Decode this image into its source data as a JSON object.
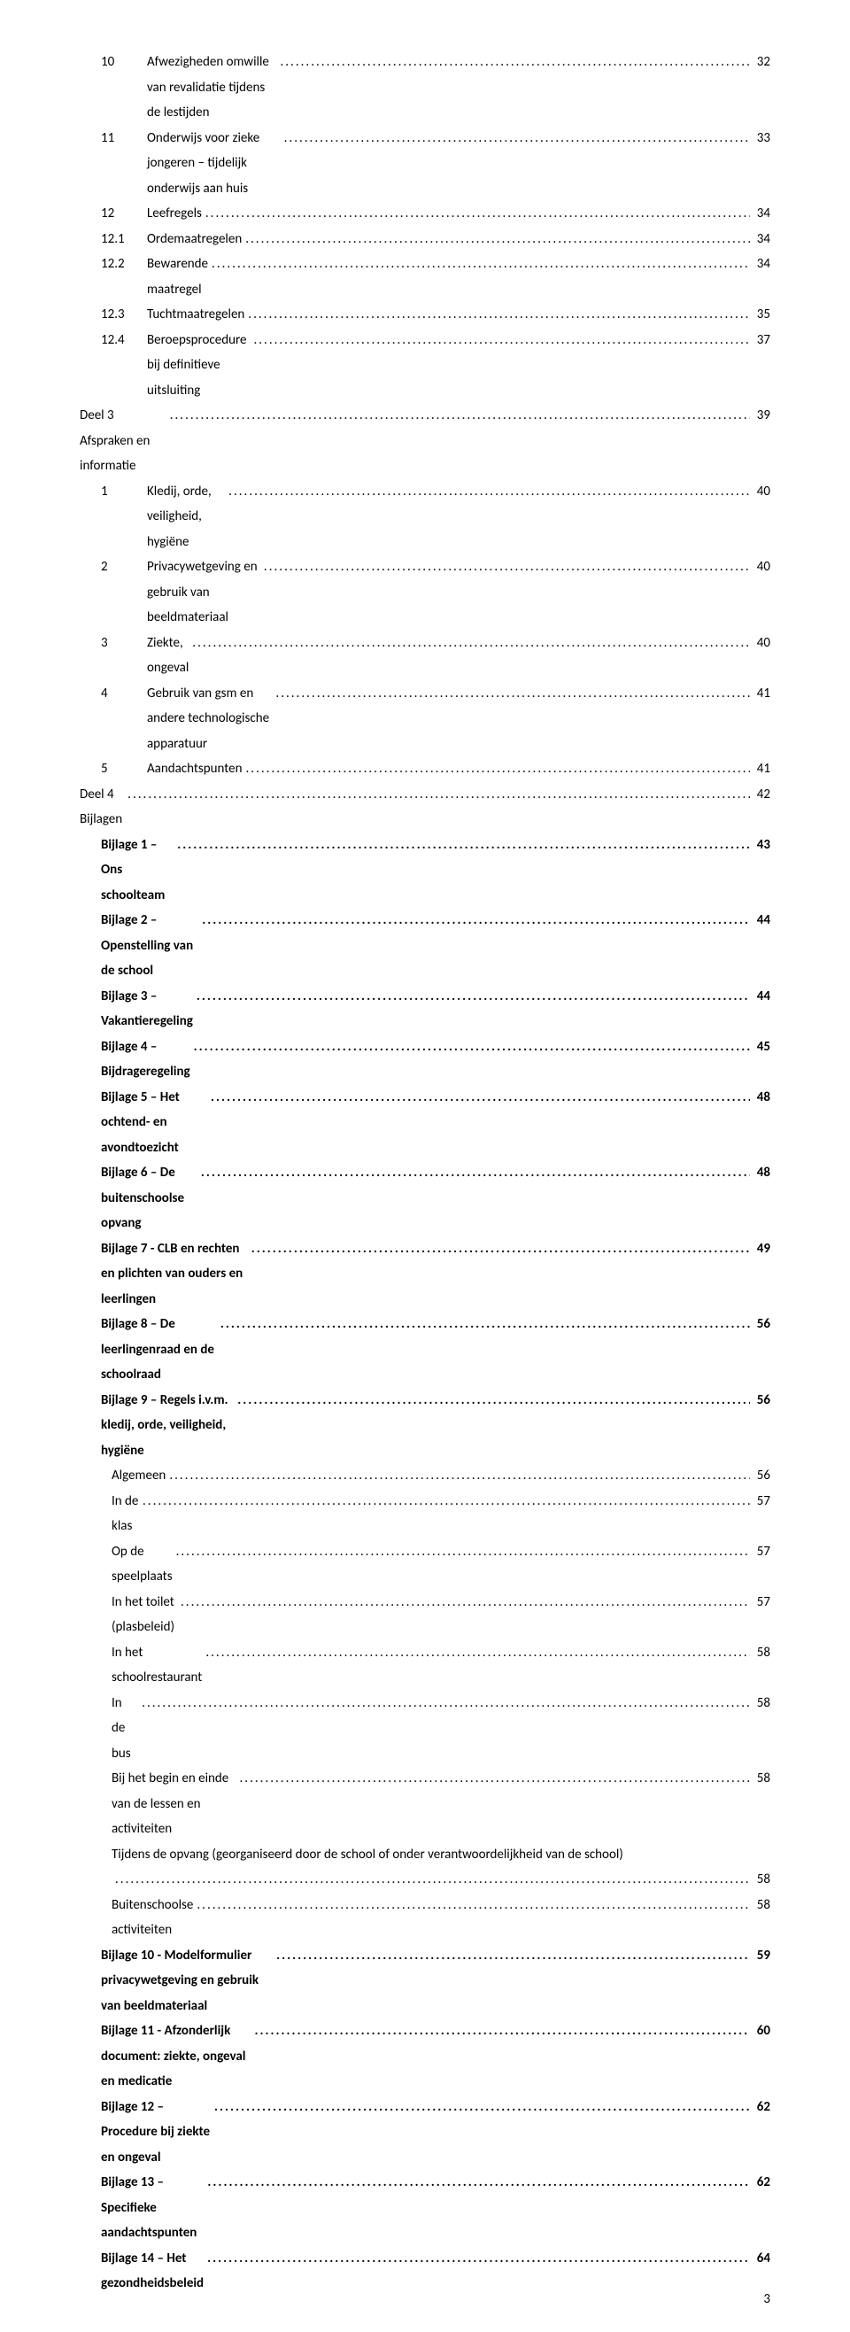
{
  "page_number": "3",
  "entries": [
    {
      "num": "10",
      "title": "Afwezigheden omwille van revalidatie tijdens de lestijden",
      "page": "32",
      "indent": "indent-1",
      "bold": false,
      "numClass": "toc-num-wide"
    },
    {
      "num": "11",
      "title": "Onderwijs voor zieke jongeren – tijdelijk onderwijs aan huis",
      "page": "33",
      "indent": "indent-1",
      "bold": false,
      "numClass": "toc-num-wide"
    },
    {
      "num": "12",
      "title": "Leefregels",
      "page": "34",
      "indent": "indent-1",
      "bold": false,
      "numClass": "toc-num-wide"
    },
    {
      "num": "12.1",
      "title": "Ordemaatregelen",
      "page": "34",
      "indent": "indent-2",
      "bold": false,
      "numClass": "toc-num-wide"
    },
    {
      "num": "12.2",
      "title": "Bewarende maatregel",
      "page": "34",
      "indent": "indent-2",
      "bold": false,
      "numClass": "toc-num-wide"
    },
    {
      "num": "12.3",
      "title": "Tuchtmaatregelen",
      "page": "35",
      "indent": "indent-2",
      "bold": false,
      "numClass": "toc-num-wide"
    },
    {
      "num": "12.4",
      "title": "Beroepsprocedure bij definitieve uitsluiting",
      "page": "37",
      "indent": "indent-2",
      "bold": false,
      "numClass": "toc-num-wide"
    },
    {
      "num": "",
      "title": "Deel 3 Afspraken en informatie",
      "page": "39",
      "indent": "",
      "bold": false,
      "numClass": ""
    },
    {
      "num": "1",
      "title": "Kledij, orde, veiligheid, hygiëne",
      "page": "40",
      "indent": "indent-1",
      "bold": false,
      "numClass": "toc-num-wide"
    },
    {
      "num": "2",
      "title": "Privacywetgeving en gebruik van beeldmateriaal",
      "page": "40",
      "indent": "indent-1",
      "bold": false,
      "numClass": "toc-num-wide"
    },
    {
      "num": "3",
      "title": "Ziekte, ongeval",
      "page": "40",
      "indent": "indent-1",
      "bold": false,
      "numClass": "toc-num-wide"
    },
    {
      "num": "4",
      "title": "Gebruik van gsm en andere technologische apparatuur",
      "page": "41",
      "indent": "indent-1",
      "bold": false,
      "numClass": "toc-num-wide"
    },
    {
      "num": "5",
      "title": "Aandachtspunten",
      "page": "41",
      "indent": "indent-1",
      "bold": false,
      "numClass": "toc-num-wide"
    },
    {
      "num": "",
      "title": "Deel 4 Bijlagen",
      "page": "42",
      "indent": "",
      "bold": false,
      "numClass": ""
    },
    {
      "num": "",
      "title": "Bijlage 1 – Ons schoolteam",
      "page": "43",
      "indent": "indent-1",
      "bold": true,
      "numClass": ""
    },
    {
      "num": "",
      "title": "Bijlage 2 – Openstelling van de school",
      "page": "44",
      "indent": "indent-1",
      "bold": true,
      "numClass": ""
    },
    {
      "num": "",
      "title": "Bijlage 3 – Vakantieregeling",
      "page": "44",
      "indent": "indent-1",
      "bold": true,
      "numClass": ""
    },
    {
      "num": "",
      "title": "Bijlage 4 – Bijdrageregeling",
      "page": "45",
      "indent": "indent-1",
      "bold": true,
      "numClass": ""
    },
    {
      "num": "",
      "title": "Bijlage 5 – Het ochtend- en avondtoezicht",
      "page": "48",
      "indent": "indent-1",
      "bold": true,
      "numClass": ""
    },
    {
      "num": "",
      "title": "Bijlage 6 – De buitenschoolse opvang",
      "page": "48",
      "indent": "indent-1",
      "bold": true,
      "numClass": ""
    },
    {
      "num": "",
      "title": "Bijlage 7 - CLB en rechten en plichten van ouders en leerlingen",
      "page": "49",
      "indent": "indent-1",
      "bold": true,
      "numClass": ""
    },
    {
      "num": "",
      "title": "Bijlage 8 – De leerlingenraad en de schoolraad",
      "page": "56",
      "indent": "indent-1",
      "bold": true,
      "numClass": ""
    },
    {
      "num": "",
      "title": "Bijlage 9 – Regels i.v.m. kledij, orde, veiligheid, hygiëne",
      "page": "56",
      "indent": "indent-1",
      "bold": true,
      "numClass": ""
    },
    {
      "num": "",
      "title": "Algemeen",
      "page": "56",
      "indent": "indent-sub",
      "bold": false,
      "numClass": ""
    },
    {
      "num": "",
      "title": "In de klas",
      "page": "57",
      "indent": "indent-sub",
      "bold": false,
      "numClass": ""
    },
    {
      "num": "",
      "title": "Op de speelplaats",
      "page": "57",
      "indent": "indent-sub",
      "bold": false,
      "numClass": ""
    },
    {
      "num": "",
      "title": "In het toilet (plasbeleid)",
      "page": "57",
      "indent": "indent-sub",
      "bold": false,
      "numClass": ""
    },
    {
      "num": "",
      "title": "In het schoolrestaurant",
      "page": "58",
      "indent": "indent-sub",
      "bold": false,
      "numClass": ""
    },
    {
      "num": "",
      "title": "In de bus",
      "page": "58",
      "indent": "indent-sub",
      "bold": false,
      "numClass": ""
    },
    {
      "num": "",
      "title": "Bij het begin en einde van de lessen en activiteiten",
      "page": "58",
      "indent": "indent-sub",
      "bold": false,
      "numClass": ""
    },
    {
      "num": "",
      "title": "Tijdens de opvang (georganiseerd door de school of onder verantwoordelijkheid van de school)",
      "page": "58",
      "indent": "indent-sub",
      "bold": false,
      "numClass": "",
      "wrap": true
    },
    {
      "num": "",
      "title": "Buitenschoolse activiteiten",
      "page": "58",
      "indent": "indent-sub",
      "bold": false,
      "numClass": ""
    },
    {
      "num": "",
      "title": "Bijlage 10 - Modelformulier privacywetgeving en gebruik van beeldmateriaal",
      "page": "59",
      "indent": "indent-1",
      "bold": true,
      "numClass": ""
    },
    {
      "num": "",
      "title": "Bijlage 11 - Afzonderlijk document: ziekte, ongeval en medicatie",
      "page": "60",
      "indent": "indent-1",
      "bold": true,
      "numClass": ""
    },
    {
      "num": "",
      "title": "Bijlage 12 – Procedure bij ziekte en ongeval",
      "page": "62",
      "indent": "indent-1",
      "bold": true,
      "numClass": ""
    },
    {
      "num": "",
      "title": "Bijlage 13 – Specifieke aandachtspunten",
      "page": "62",
      "indent": "indent-1",
      "bold": true,
      "numClass": ""
    },
    {
      "num": "",
      "title": "Bijlage 14 – Het gezondheidsbeleid",
      "page": "64",
      "indent": "indent-1",
      "bold": true,
      "numClass": ""
    }
  ]
}
